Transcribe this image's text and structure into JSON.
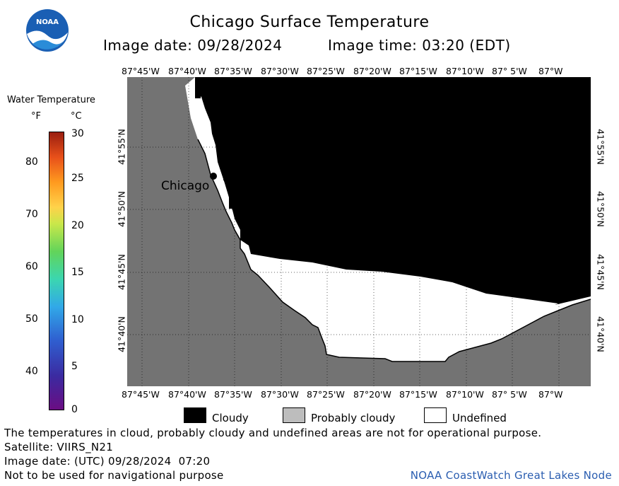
{
  "header": {
    "title": "Chicago Surface Temperature",
    "image_date": "Image date: 09/28/2024",
    "image_time": "Image time: 03:20 (EDT)",
    "logo_text": "NOAA"
  },
  "colorbar": {
    "title": "Water Temperature",
    "unit_f": "°F",
    "unit_c": "°C",
    "f_ticks": [
      "80",
      "70",
      "60",
      "50",
      "40"
    ],
    "c_ticks": [
      "30",
      "25",
      "20",
      "15",
      "10",
      "5",
      "0"
    ]
  },
  "map": {
    "city_label": "Chicago",
    "lon_labels": [
      "87°45'W",
      "87°40'W",
      "87°35'W",
      "87°30'W",
      "87°25'W",
      "87°20'W",
      "87°15'W",
      "87°10'W",
      "87° 5'W",
      "87°W"
    ],
    "lat_labels": [
      "41°55'N",
      "41°50'N",
      "41°45'N",
      "41°40'N"
    ],
    "colors": {
      "land": "#737373",
      "cloud": "#000000",
      "undefined": "#ffffff",
      "probably_cloudy": "#bdbdbd"
    }
  },
  "legend": {
    "cloudy": "Cloudy",
    "probably_cloudy": "Probably cloudy",
    "undefined": "Undefined"
  },
  "footer": {
    "note": "The temperatures in cloud, probably cloudy and undefined areas are not for operational purpose.",
    "satellite": "Satellite: VIIRS_N21",
    "utc_date": "Image date: (UTC) 09/28/2024  07:20",
    "nav_warning": "Not to be used for navigational purpose",
    "credit": "NOAA CoastWatch Great Lakes Node"
  }
}
